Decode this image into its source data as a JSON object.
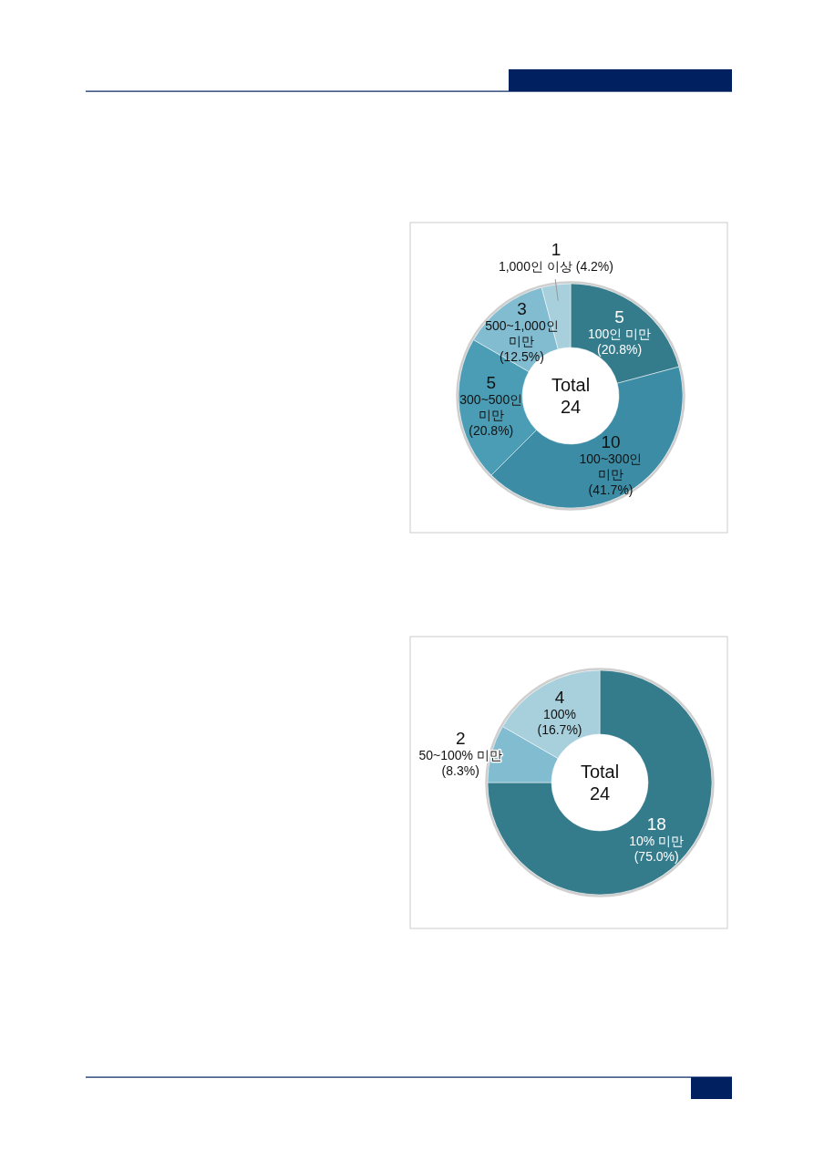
{
  "chart_data": [
    {
      "type": "donut",
      "categories": [
        "100인 미만 (20.8%)",
        "100~300인 미만 (41.7%)",
        "300~500인 미만 (20.8%)",
        "500~1,000인 미만 (12.5%)",
        "1,000인 이상 (4.2%)"
      ],
      "values": [
        5,
        10,
        5,
        3,
        1
      ],
      "colors": [
        "#347b8c",
        "#3b8ca4",
        "#4a9db5",
        "#82bcd0",
        "#a8cfdc"
      ],
      "data_labels": true,
      "annotations": [
        "Total\n24"
      ]
    },
    {
      "type": "donut",
      "categories": [
        "10% 미만 (75.0%)",
        "50~100% 미만 (8.3%)",
        "100% (16.7%)"
      ],
      "values": [
        18,
        2,
        4
      ],
      "colors": [
        "#347b8c",
        "#82bcd0",
        "#a8cfdc"
      ],
      "data_labels": true,
      "annotations": [
        "Total\n24"
      ]
    }
  ]
}
